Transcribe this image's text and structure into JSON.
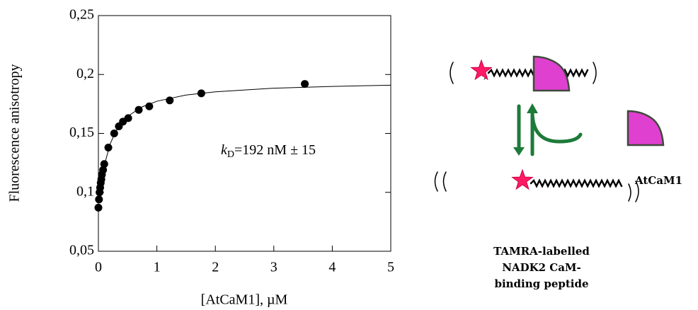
{
  "chart_data": {
    "type": "scatter",
    "x_label": "[AtCaM1], µM",
    "y_label": "Fluorescence anisotropy",
    "annotation": {
      "k": "k",
      "sub": "D",
      "rest": "=192 nM ± 15"
    },
    "xlim": [
      0,
      5
    ],
    "xticks": [
      0,
      1,
      2,
      3,
      4,
      5
    ],
    "ylim": [
      0.05,
      0.25
    ],
    "yticks": [
      {
        "value": 0.05,
        "label": "0,05"
      },
      {
        "value": 0.1,
        "label": "0,1"
      },
      {
        "value": 0.15,
        "label": "0,15"
      },
      {
        "value": 0.2,
        "label": "0,2"
      },
      {
        "value": 0.25,
        "label": "0,25"
      }
    ],
    "series": [
      {
        "mode": "markers",
        "color": "#000000",
        "x": [
          0,
          0.01,
          0.02,
          0.03,
          0.04,
          0.05,
          0.06,
          0.08,
          0.1,
          0.17,
          0.27,
          0.35,
          0.42,
          0.51,
          0.69,
          0.87,
          1.22,
          1.76,
          3.53
        ],
        "values": [
          0.087,
          0.094,
          0.1,
          0.104,
          0.108,
          0.111,
          0.115,
          0.119,
          0.124,
          0.138,
          0.15,
          0.156,
          0.16,
          0.163,
          0.17,
          0.173,
          0.178,
          0.184,
          0.192
        ]
      },
      {
        "mode": "line",
        "color": "#000000",
        "x": [
          0.02,
          0.05,
          0.1,
          0.2,
          0.3,
          0.5,
          0.75,
          1,
          1.5,
          2,
          3,
          4,
          5
        ],
        "values": [
          0.0954,
          0.1078,
          0.1227,
          0.141,
          0.152,
          0.1645,
          0.1726,
          0.1773,
          0.1826,
          0.1853,
          0.1884,
          0.1899,
          0.1909
        ]
      }
    ]
  },
  "diagram": {
    "protein_label": "AtCaM1",
    "peptide_label": [
      "TAMRA-labelled",
      "NADK2 CaM-",
      "binding peptide"
    ]
  }
}
